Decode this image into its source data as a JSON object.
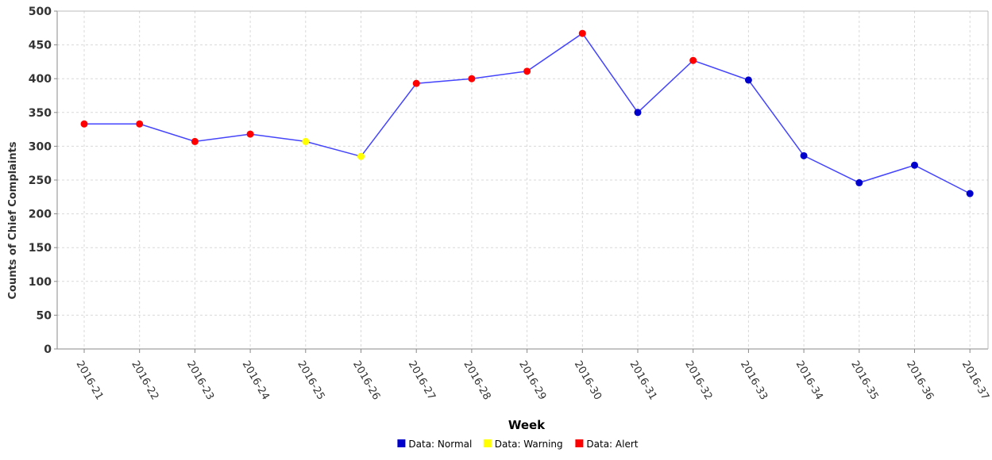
{
  "chart_data": {
    "type": "line",
    "title": "",
    "xlabel": "Week",
    "ylabel": "Counts of Chief Complaints",
    "ylim": [
      0,
      500
    ],
    "yticks": [
      0,
      50,
      100,
      150,
      200,
      250,
      300,
      350,
      400,
      450,
      500
    ],
    "grid": true,
    "legend_position": "bottom-center",
    "line_color": "#4444ff",
    "categories": [
      "2016-21",
      "2016-22",
      "2016-23",
      "2016-24",
      "2016-25",
      "2016-26",
      "2016-27",
      "2016-28",
      "2016-29",
      "2016-30",
      "2016-31",
      "2016-32",
      "2016-33",
      "2016-34",
      "2016-35",
      "2016-36",
      "2016-37"
    ],
    "series": [
      {
        "values": [
          333,
          333,
          307,
          318,
          307,
          285,
          393,
          400,
          411,
          467,
          350,
          427,
          398,
          286,
          246,
          272,
          230
        ],
        "status": [
          "Alert",
          "Alert",
          "Alert",
          "Alert",
          "Warning",
          "Warning",
          "Alert",
          "Alert",
          "Alert",
          "Alert",
          "Normal",
          "Alert",
          "Normal",
          "Normal",
          "Normal",
          "Normal",
          "Normal"
        ]
      }
    ],
    "legend": [
      {
        "label": "Data: Normal",
        "status": "Normal",
        "color": "#0000cc"
      },
      {
        "label": "Data: Warning",
        "status": "Warning",
        "color": "#ffff00"
      },
      {
        "label": "Data: Alert",
        "status": "Alert",
        "color": "#ff0000"
      }
    ]
  }
}
